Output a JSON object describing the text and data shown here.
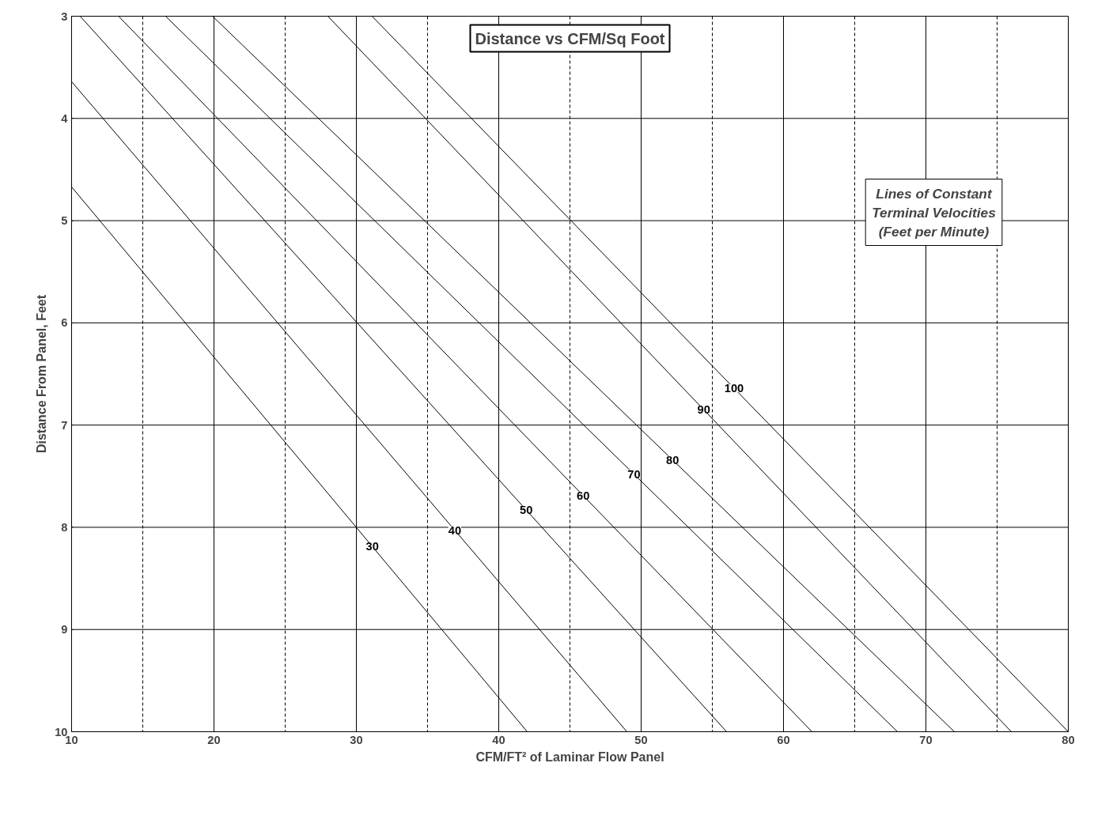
{
  "chart_data": {
    "type": "line",
    "title": "Distance vs CFM/Sq Foot",
    "xlabel": "CFM/FT² of Laminar Flow Panel",
    "ylabel": "Distance From Panel, Feet",
    "annotations": [
      "Lines of Constant\nTerminal Velocities\n(Feet per Minute)"
    ],
    "xlim": [
      10,
      80
    ],
    "ylim": [
      10,
      3
    ],
    "xticks": [
      10,
      {
        "value": 15,
        "label": null
      },
      20,
      {
        "value": 25,
        "label": null
      },
      30,
      {
        "value": 35,
        "label": null
      },
      40,
      {
        "value": 45,
        "label": null
      },
      50,
      {
        "value": 55,
        "label": null
      },
      60,
      {
        "value": 65,
        "label": null
      },
      70,
      {
        "value": 75,
        "label": null
      },
      80
    ],
    "yticks": [
      3,
      4,
      5,
      6,
      7,
      8,
      9,
      10
    ],
    "grid": true,
    "line_style": "solid",
    "marker": "none",
    "series": [
      {
        "name": "30",
        "color": "#000000",
        "x": [
          10,
          42
        ],
        "values": [
          4.67,
          10
        ]
      },
      {
        "name": "40",
        "color": "#000000",
        "x": [
          10,
          49
        ],
        "values": [
          3.64,
          10
        ]
      },
      {
        "name": "50",
        "color": "#000000",
        "x": [
          10.6,
          56
        ],
        "values": [
          3,
          10
        ]
      },
      {
        "name": "60",
        "color": "#000000",
        "x": [
          13.3,
          62
        ],
        "values": [
          3,
          10
        ]
      },
      {
        "name": "70",
        "color": "#000000",
        "x": [
          16.6,
          68
        ],
        "values": [
          3,
          10
        ]
      },
      {
        "name": "80",
        "color": "#000000",
        "x": [
          19.9,
          72
        ],
        "values": [
          3,
          10
        ]
      },
      {
        "name": "90",
        "color": "#000000",
        "x": [
          28,
          76
        ],
        "values": [
          3,
          10
        ]
      },
      {
        "name": "100",
        "color": "#000000",
        "x": [
          31.1,
          80
        ],
        "values": [
          3,
          10
        ]
      }
    ]
  }
}
